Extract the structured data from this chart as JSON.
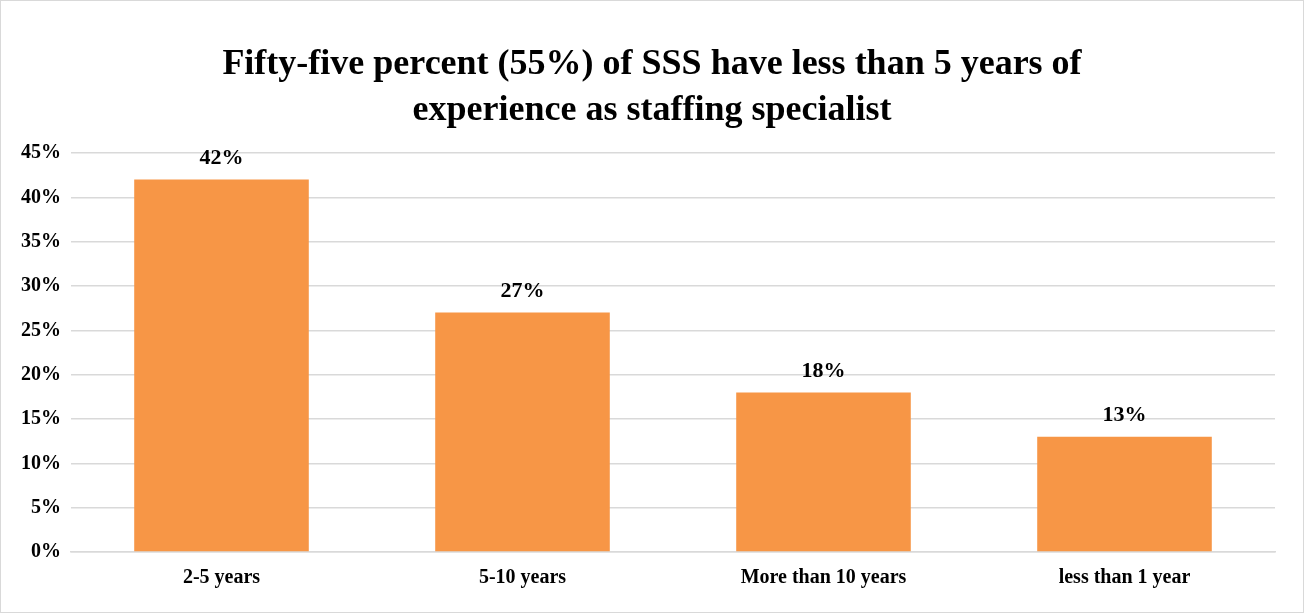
{
  "chart_data": {
    "type": "bar",
    "title": "Fifty-five percent (55%) of SSS have less than 5 years of experience as staffing specialist",
    "categories": [
      "2-5 years",
      "5-10 years",
      "More than 10 years",
      "less than 1 year"
    ],
    "values": [
      42,
      27,
      18,
      13
    ],
    "value_labels": [
      "42%",
      "27%",
      "18%",
      "13%"
    ],
    "color": "#f79646",
    "ylim": [
      0,
      45
    ],
    "yticks": [
      {
        "value": 0,
        "label": "0%"
      },
      {
        "value": 5,
        "label": "5%"
      },
      {
        "value": 10,
        "label": "10%"
      },
      {
        "value": 15,
        "label": "15%"
      },
      {
        "value": 20,
        "label": "20%"
      },
      {
        "value": 25,
        "label": "25%"
      },
      {
        "value": 30,
        "label": "30%"
      },
      {
        "value": 35,
        "label": "35%"
      },
      {
        "value": 40,
        "label": "40%"
      },
      {
        "value": 45,
        "label": "45%"
      }
    ],
    "grid": "y",
    "legend": false
  }
}
